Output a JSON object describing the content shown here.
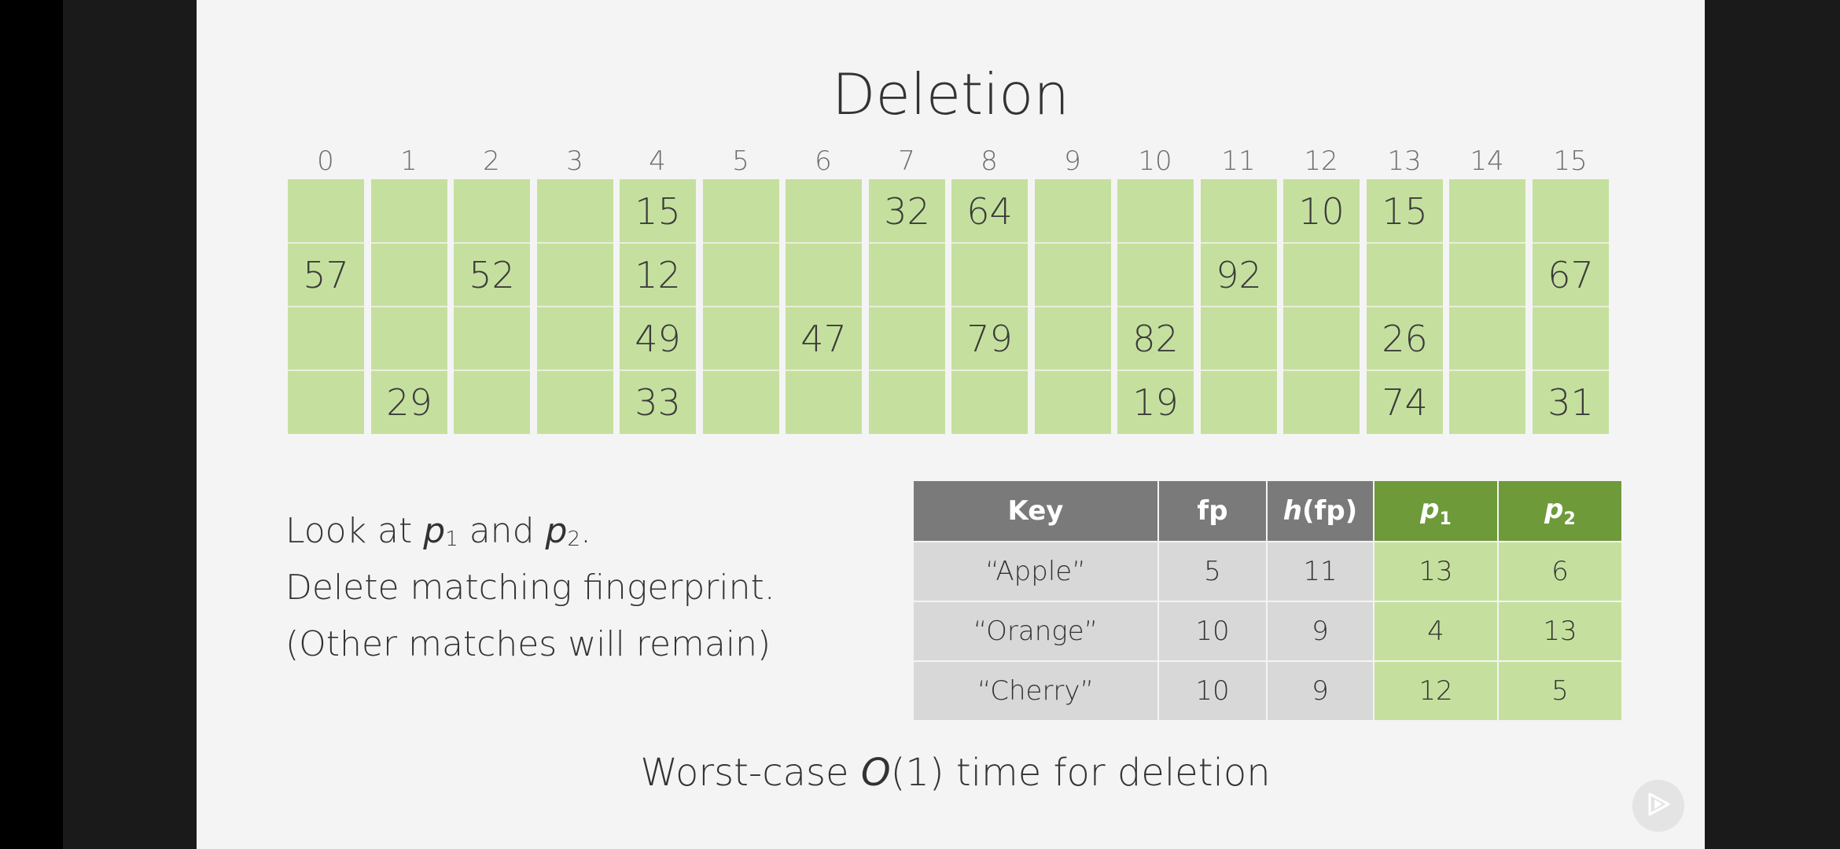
{
  "slide": {
    "title": "Deletion",
    "indices": [
      "0",
      "1",
      "2",
      "3",
      "4",
      "5",
      "6",
      "7",
      "8",
      "9",
      "10",
      "11",
      "12",
      "13",
      "14",
      "15"
    ],
    "buckets": [
      [
        "",
        "57",
        "",
        ""
      ],
      [
        "",
        "",
        "",
        "29"
      ],
      [
        "",
        "52",
        "",
        ""
      ],
      [
        "",
        "",
        "",
        ""
      ],
      [
        "15",
        "12",
        "49",
        "33"
      ],
      [
        "",
        "",
        "",
        ""
      ],
      [
        "",
        "",
        "47",
        ""
      ],
      [
        "32",
        "",
        "",
        ""
      ],
      [
        "64",
        "",
        "79",
        ""
      ],
      [
        "",
        "",
        "",
        ""
      ],
      [
        "",
        "",
        "82",
        "19"
      ],
      [
        "",
        "92",
        "",
        ""
      ],
      [
        "10",
        "",
        "",
        ""
      ],
      [
        "15",
        "",
        "26",
        "74"
      ],
      [
        "",
        "",
        "",
        ""
      ],
      [
        "",
        "67",
        "",
        "31"
      ]
    ],
    "text": {
      "line1_prefix": "Look at ",
      "line1_p": "p",
      "line1_sub1": "1",
      "line1_and": " and ",
      "line1_sub2": "2",
      "line1_end": ".",
      "line2": "Delete matching fingerprint.",
      "line3": "(Other matches will remain)"
    },
    "table": {
      "headers": {
        "key": "Key",
        "fp": "fp",
        "h_italic": "h",
        "h_rest": "(fp)",
        "p": "p",
        "sub1": "1",
        "sub2": "2"
      },
      "rows": [
        {
          "key": "“Apple”",
          "fp": "5",
          "h": "11",
          "p1": "13",
          "p2": "6"
        },
        {
          "key": "“Orange”",
          "fp": "10",
          "h": "9",
          "p1": "4",
          "p2": "13"
        },
        {
          "key": "“Cherry”",
          "fp": "10",
          "h": "9",
          "p1": "12",
          "p2": "5"
        }
      ]
    },
    "footer": {
      "prefix": "Worst-case ",
      "o": "O",
      "rest": "(1) time for deletion"
    }
  },
  "icons": {
    "play": "play-button-icon"
  }
}
